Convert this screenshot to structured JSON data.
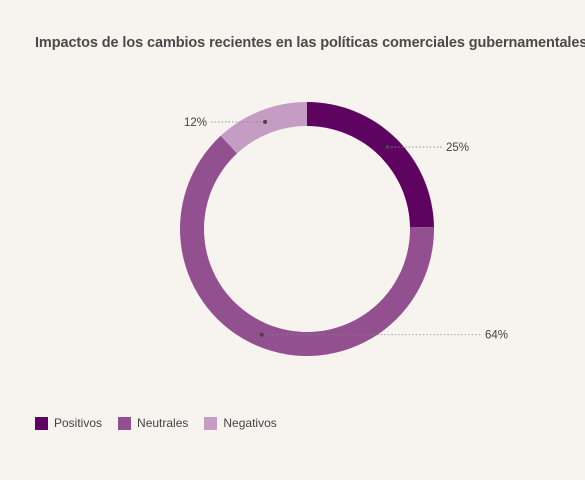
{
  "chart_data": {
    "type": "pie",
    "title": "Impactos de los cambios recientes en las políticas comerciales gubernamentales",
    "categories": [
      "Positivos",
      "Neutrales",
      "Negativos"
    ],
    "values": [
      25,
      64,
      12
    ],
    "labels": [
      "25%",
      "64%",
      "12%"
    ],
    "colors": [
      "#5e0460",
      "#935090",
      "#c49cc4"
    ],
    "legend_position": "bottom-left"
  }
}
